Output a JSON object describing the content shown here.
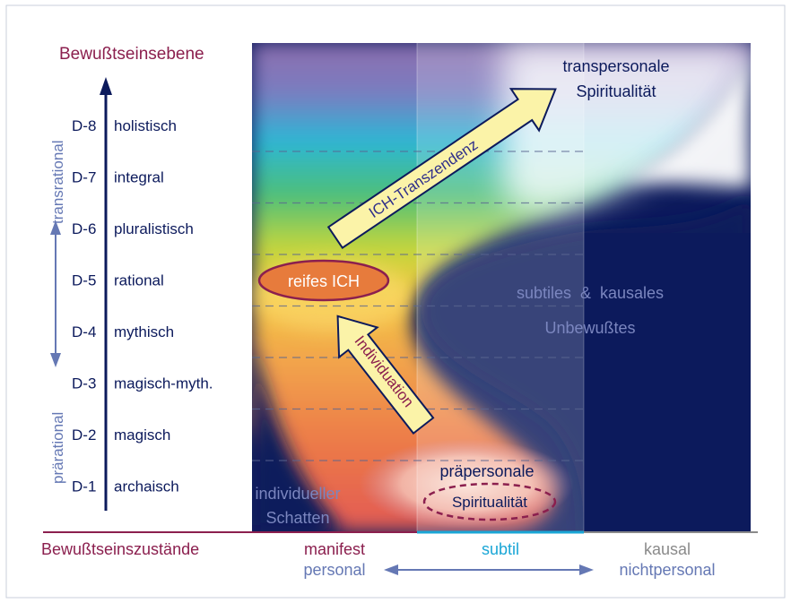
{
  "title": "Bewußtseinsebene",
  "bottom_title": "Bewußtseinszustände",
  "levels": [
    {
      "code": "D-8",
      "name": "holistisch"
    },
    {
      "code": "D-7",
      "name": "integral"
    },
    {
      "code": "D-6",
      "name": "pluralistisch"
    },
    {
      "code": "D-5",
      "name": "rational"
    },
    {
      "code": "D-4",
      "name": "mythisch"
    },
    {
      "code": "D-3",
      "name": "magisch-myth."
    },
    {
      "code": "D-2",
      "name": "magisch"
    },
    {
      "code": "D-1",
      "name": "archaisch"
    }
  ],
  "side_labels": {
    "upper": "transrational",
    "lower": "prärational"
  },
  "states": {
    "manifest": "manifest",
    "subtil": "subtil",
    "kausal": "kausal",
    "personal": "personal",
    "nichtpersonal": "nichtpersonal"
  },
  "annotations": {
    "transpersonal_line1": "transpersonale",
    "transpersonal_line2": "Spiritualität",
    "ich_transzendenz": "ICH-Transzendenz",
    "reifes_ich": "reifes ICH",
    "individuation": "Individuation",
    "subtiles_line1": "subtiles  &  kausales",
    "subtiles_line2": "Unbewußtes",
    "praepersonal_line1": "präpersonale",
    "praepersonal_line2": "Spiritualität",
    "schatten_line1": "individueller",
    "schatten_line2": "Schatten"
  },
  "colors": {
    "maroon": "#8b1f4e",
    "navy": "#0c1a5c",
    "steel_blue": "#6578b4",
    "cyan": "#1aa6d6",
    "grey": "#8a8a8a",
    "arrow_fill": "#fbf3a8",
    "oval_fill": "#e77b3c"
  }
}
